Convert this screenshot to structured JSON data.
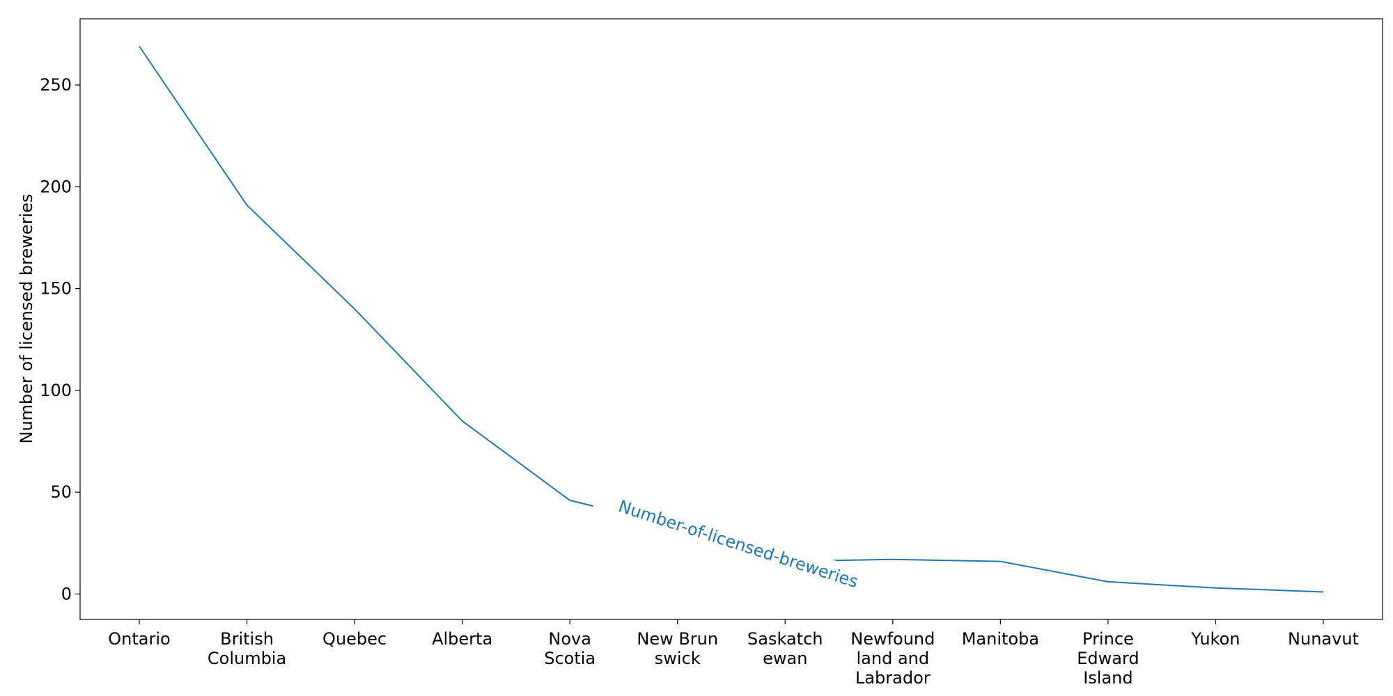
{
  "chart_data": {
    "type": "line",
    "title": "",
    "xlabel": "",
    "ylabel": "Number of licensed breweries",
    "categories": [
      "Ontario",
      "British Columbia",
      "Quebec",
      "Alberta",
      "Nova Scotia",
      "New Brunswick",
      "Saskatchewan",
      "Newfoundland and Labrador",
      "Manitoba",
      "Prince Edward Island",
      "Yukon",
      "Nunavut"
    ],
    "category_display_lines": [
      [
        "Ontario"
      ],
      [
        "British",
        "Columbia"
      ],
      [
        "Quebec"
      ],
      [
        "Alberta"
      ],
      [
        "Nova",
        "Scotia"
      ],
      [
        "New Brun",
        "swick"
      ],
      [
        "Saskatch",
        "ewan"
      ],
      [
        "Newfound",
        "land and",
        "Labrador"
      ],
      [
        "Manitoba"
      ],
      [
        "Prince",
        "Edward",
        "Island"
      ],
      [
        "Yukon"
      ],
      [
        "Nunavut"
      ]
    ],
    "series": [
      {
        "name": "Number-of-licensed-breweries",
        "values": [
          269,
          191,
          140,
          85,
          46,
          33,
          16,
          17,
          16,
          6,
          3,
          1
        ],
        "color": "#1f77b4"
      }
    ],
    "ylim": [
      -12.5,
      282.5
    ],
    "yticks": [
      0,
      50,
      100,
      150,
      200,
      250
    ],
    "grid": false,
    "legend": "none"
  }
}
